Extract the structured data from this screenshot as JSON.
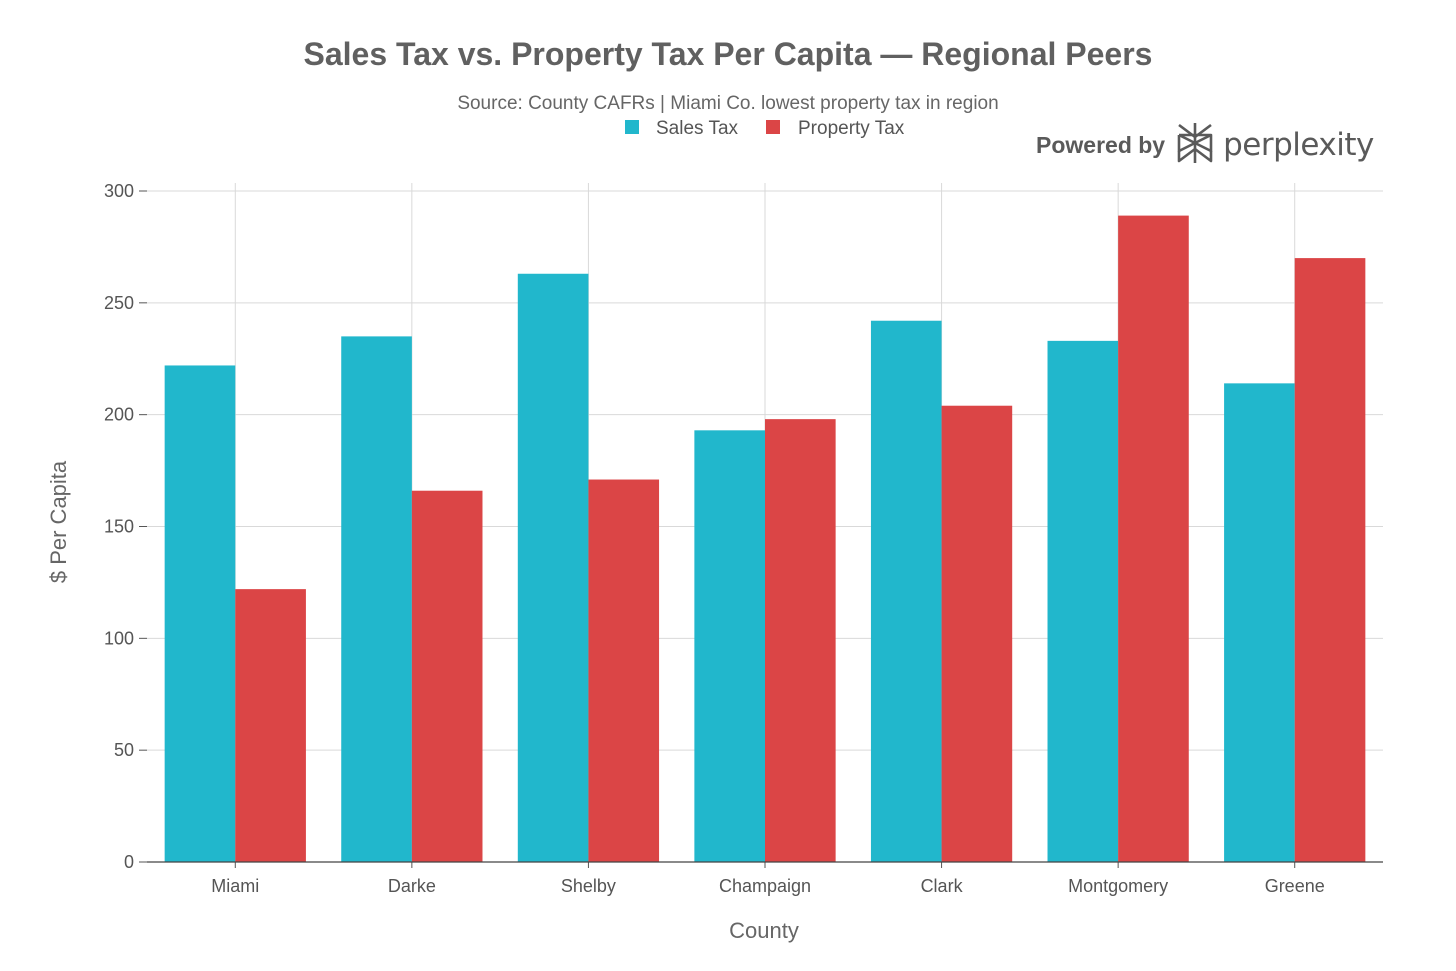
{
  "chart_data": {
    "type": "bar",
    "title": "Sales Tax vs. Property Tax Per Capita — Regional Peers",
    "subtitle": "Source: County CAFRs | Miami Co. lowest property tax in region",
    "xlabel": "County",
    "ylabel": "$ Per Capita",
    "categories": [
      "Miami",
      "Darke",
      "Shelby",
      "Champaign",
      "Clark",
      "Montgomery",
      "Greene"
    ],
    "series": [
      {
        "name": "Sales Tax",
        "color": "#21b7cc",
        "values": [
          222,
          235,
          263,
          193,
          242,
          233,
          214
        ]
      },
      {
        "name": "Property Tax",
        "color": "#db4546",
        "values": [
          122,
          166,
          171,
          198,
          204,
          289,
          270
        ]
      }
    ],
    "ylim": [
      0,
      300
    ],
    "yticks": [
      0,
      50,
      100,
      150,
      200,
      250,
      300
    ],
    "grid": true,
    "legend_position": "top-center"
  },
  "branding": {
    "powered_by": "Powered by",
    "name": "perplexity",
    "icon": "perplexity-logo-icon"
  }
}
